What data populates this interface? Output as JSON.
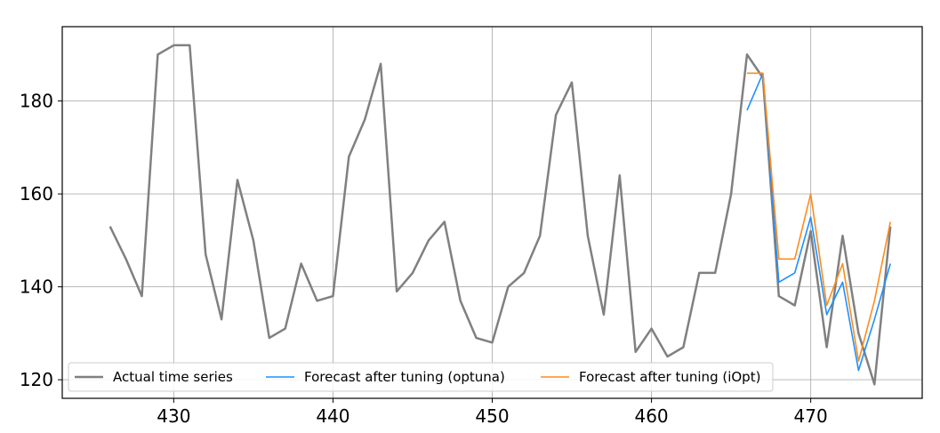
{
  "chart_data": {
    "type": "line",
    "title": "",
    "xlabel": "",
    "ylabel": "",
    "xlim": [
      423,
      477
    ],
    "ylim": [
      116,
      196
    ],
    "xticks": [
      430,
      440,
      450,
      460,
      470
    ],
    "yticks": [
      120,
      140,
      160,
      180
    ],
    "grid": true,
    "legend_position": "bottom-center",
    "series": [
      {
        "name": "Actual time series",
        "color": "#808080",
        "x": [
          426,
          427,
          428,
          429,
          430,
          431,
          432,
          433,
          434,
          435,
          436,
          437,
          438,
          439,
          440,
          441,
          442,
          443,
          444,
          445,
          446,
          447,
          448,
          449,
          450,
          451,
          452,
          453,
          454,
          455,
          456,
          457,
          458,
          459,
          460,
          461,
          462,
          463,
          464,
          465,
          466,
          467,
          468,
          469,
          470,
          471,
          472,
          473,
          474,
          475
        ],
        "values": [
          153,
          146,
          138,
          190,
          192,
          192,
          147,
          133,
          163,
          150,
          129,
          131,
          145,
          137,
          138,
          168,
          176,
          188,
          139,
          143,
          150,
          154,
          137,
          129,
          128,
          140,
          143,
          151,
          177,
          184,
          151,
          134,
          164,
          126,
          131,
          125,
          127,
          143,
          143,
          160,
          190,
          185,
          138,
          136,
          152,
          127,
          151,
          130,
          119,
          153
        ]
      },
      {
        "name": "Forecast after tuning (optuna)",
        "color": "#1f8fff",
        "x": [
          466,
          467,
          468,
          469,
          470,
          471,
          472,
          473,
          474,
          475
        ],
        "values": [
          178,
          186,
          141,
          143,
          155,
          134,
          141,
          122,
          133,
          145
        ]
      },
      {
        "name": "Forecast after tuning (iOpt)",
        "color": "#ff8c1a",
        "x": [
          466,
          467,
          468,
          469,
          470,
          471,
          472,
          473,
          474,
          475
        ],
        "values": [
          186,
          186,
          146,
          146,
          160,
          136,
          145,
          124,
          137,
          154
        ]
      }
    ]
  }
}
